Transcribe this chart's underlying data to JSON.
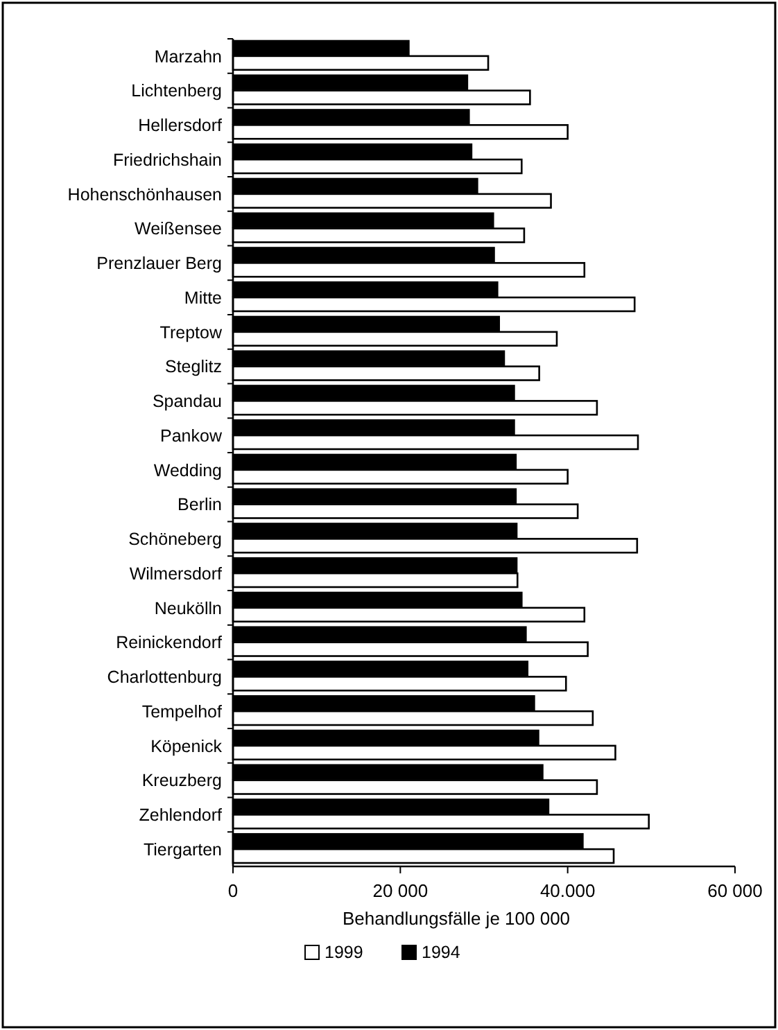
{
  "chart_data": {
    "type": "bar",
    "orientation": "horizontal",
    "xlabel": "Behandlungsfälle je 100 000",
    "categories": [
      "Marzahn",
      "Lichtenberg",
      "Hellersdorf",
      "Friedrichshain",
      "Hohenschönhausen",
      "Weißensee",
      "Prenzlauer Berg",
      "Mitte",
      "Treptow",
      "Steglitz",
      "Spandau",
      "Pankow",
      "Wedding",
      "Berlin",
      "Schöneberg",
      "Wilmersdorf",
      "Neukölln",
      "Reinickendorf",
      "Charlottenburg",
      "Tempelhof",
      "Köpenick",
      "Kreuzberg",
      "Zehlendorf",
      "Tiergarten"
    ],
    "series": [
      {
        "name": "1999",
        "color": "#ffffff",
        "values": [
          30500,
          35500,
          40000,
          34500,
          38000,
          34800,
          42000,
          48000,
          38700,
          36600,
          43500,
          48400,
          40000,
          41200,
          48300,
          34000,
          42000,
          42400,
          39800,
          43000,
          45700,
          43500,
          49700,
          45500
        ]
      },
      {
        "name": "1994",
        "color": "#000000",
        "values": [
          21000,
          28000,
          28200,
          28500,
          29200,
          31100,
          31200,
          31600,
          31800,
          32400,
          33600,
          33600,
          33800,
          33800,
          33900,
          33900,
          34500,
          35000,
          35200,
          36000,
          36500,
          37000,
          37700,
          41800
        ]
      }
    ],
    "xlim": [
      0,
      60000
    ],
    "xticks": [
      0,
      {
        "value": 20000,
        "label": "20 000"
      },
      {
        "value": 40000,
        "label": "40.000"
      },
      {
        "value": 60000,
        "label": "60 000"
      }
    ],
    "grid": false,
    "legend": "bottom"
  }
}
